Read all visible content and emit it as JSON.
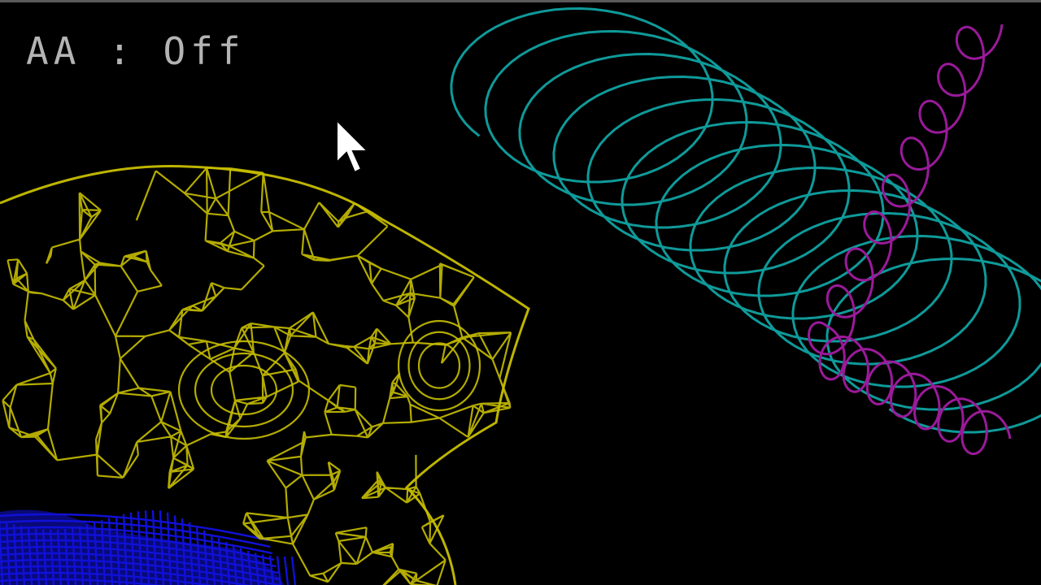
{
  "hud": {
    "aa_label": "AA : Off"
  },
  "scene": {
    "background": "#000000",
    "objects": [
      {
        "name": "monkey-head-wireframe",
        "color": "#c8bf00"
      },
      {
        "name": "blue-wireframe-mesh",
        "color": "#1010d8"
      },
      {
        "name": "teal-helix-coil",
        "color": "#0f9a9a"
      },
      {
        "name": "magenta-helix-coil",
        "color": "#9a1a9a"
      }
    ]
  },
  "cursor": {
    "icon": "arrow-cursor-icon"
  }
}
